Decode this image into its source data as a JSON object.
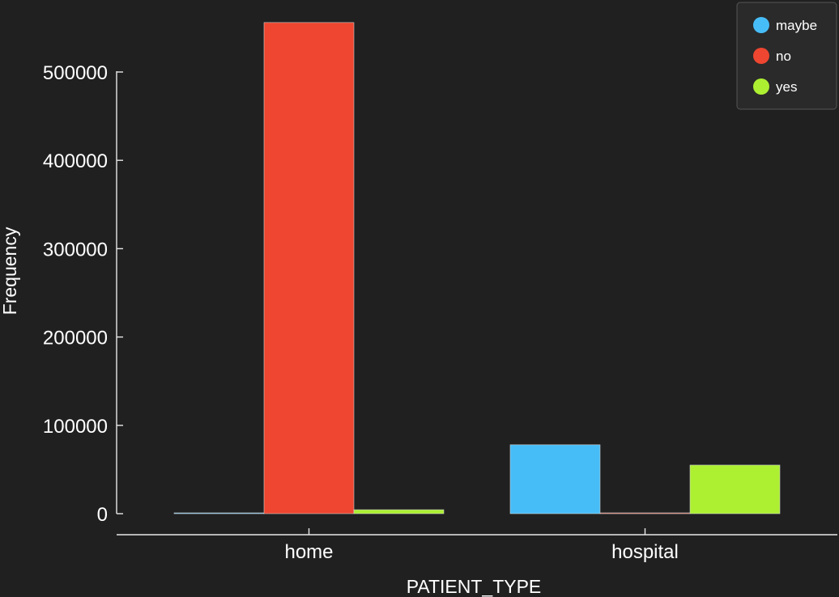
{
  "chart_data": {
    "type": "bar",
    "title": "",
    "xlabel": "PATIENT_TYPE",
    "ylabel": "Frequency",
    "categories": [
      "home",
      "hospital"
    ],
    "series": [
      {
        "name": "maybe",
        "color": "#47bdf8",
        "values": [
          0,
          78000
        ]
      },
      {
        "name": "no",
        "color": "#ee4630",
        "values": [
          556000,
          0
        ]
      },
      {
        "name": "yes",
        "color": "#adf032",
        "values": [
          4500,
          55000
        ]
      }
    ],
    "yticks": [
      0,
      100000,
      200000,
      300000,
      400000,
      500000
    ],
    "ylim": [
      0,
      560000
    ],
    "legend_position": "top-right",
    "grid": false
  }
}
